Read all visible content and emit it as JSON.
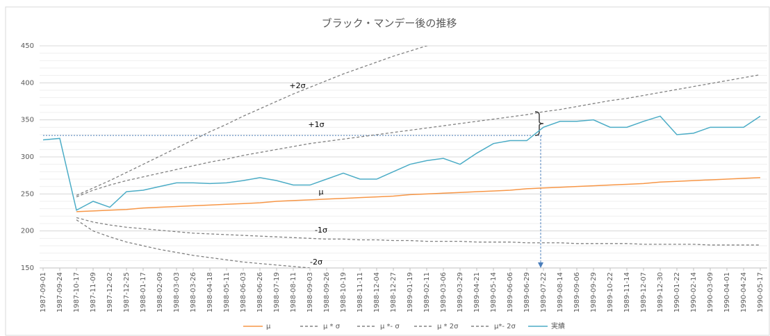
{
  "chart_data": {
    "type": "line",
    "title": "ブラック・マンデー後の推移",
    "categories": [
      "1987-09-01",
      "1987-09-24",
      "1987-10-17",
      "1987-11-09",
      "1987-12-02",
      "1987-12-25",
      "1988-01-17",
      "1988-02-09",
      "1988-03-03",
      "1988-03-26",
      "1988-04-18",
      "1988-05-11",
      "1988-06-03",
      "1988-06-26",
      "1988-07-19",
      "1988-08-11",
      "1988-09-03",
      "1988-09-26",
      "1988-10-19",
      "1988-11-11",
      "1988-12-04",
      "1988-12-27",
      "1989-01-19",
      "1989-02-11",
      "1989-03-06",
      "1989-03-29",
      "1989-04-21",
      "1989-05-14",
      "1989-06-06",
      "1989-06-29",
      "1989-07-22",
      "1989-08-14",
      "1989-09-06",
      "1989-09-29",
      "1989-10-22",
      "1989-11-14",
      "1989-12-07",
      "1989-12-30",
      "1990-01-22",
      "1990-02-14",
      "1990-03-09",
      "1990-04-01",
      "1990-04-24",
      "1990-05-17"
    ],
    "series": [
      {
        "name": "μ",
        "color": "#f79646",
        "dashed": false,
        "values": [
          null,
          null,
          226,
          227,
          228,
          229,
          231,
          232,
          233,
          234,
          235,
          236,
          237,
          238,
          240,
          241,
          242,
          243,
          244,
          245,
          246,
          247,
          249,
          250,
          251,
          252,
          253,
          254,
          255,
          257,
          258,
          259,
          260,
          261,
          262,
          263,
          264,
          266,
          267,
          268,
          269,
          270,
          271,
          272
        ]
      },
      {
        "name": "μ * σ",
        "color": "#808080",
        "dashed": true,
        "values": [
          null,
          null,
          246,
          255,
          262,
          268,
          273,
          278,
          283,
          288,
          293,
          297,
          302,
          306,
          310,
          314,
          318,
          321,
          324,
          327,
          330,
          333,
          336,
          339,
          342,
          345,
          348,
          351,
          354,
          357,
          361,
          364,
          368,
          372,
          376,
          379,
          383,
          387,
          391,
          395,
          399,
          403,
          407,
          411
        ]
      },
      {
        "name": "μ *- σ",
        "color": "#808080",
        "dashed": true,
        "values": [
          null,
          null,
          218,
          212,
          208,
          205,
          203,
          201,
          199,
          197,
          196,
          195,
          194,
          193,
          192,
          191,
          190,
          189,
          189,
          188,
          188,
          187,
          187,
          186,
          186,
          186,
          185,
          185,
          185,
          184,
          184,
          184,
          183,
          183,
          183,
          183,
          182,
          182,
          182,
          182,
          181,
          181,
          181,
          181
        ]
      },
      {
        "name": "μ * 2σ",
        "color": "#808080",
        "dashed": true,
        "values": [
          null,
          null,
          248,
          258,
          268,
          279,
          290,
          301,
          312,
          323,
          334,
          344,
          355,
          365,
          375,
          385,
          394,
          403,
          412,
          420,
          428,
          436,
          443,
          450,
          457,
          464,
          null,
          null,
          null,
          null,
          null,
          null,
          null,
          null,
          null,
          null,
          null,
          null,
          null,
          null,
          null,
          null,
          null,
          null
        ]
      },
      {
        "name": "μ*- 2σ",
        "color": "#808080",
        "dashed": true,
        "values": [
          null,
          null,
          215,
          200,
          192,
          185,
          180,
          175,
          171,
          167,
          164,
          161,
          158,
          156,
          154,
          152,
          150,
          null,
          null,
          null,
          null,
          null,
          null,
          null,
          null,
          null,
          null,
          null,
          null,
          null,
          null,
          null,
          null,
          null,
          null,
          null,
          null,
          null,
          null,
          null,
          null,
          null,
          null,
          null
        ]
      },
      {
        "name": "実績",
        "color": "#4bacc6",
        "dashed": false,
        "values": [
          323,
          325,
          228,
          240,
          232,
          253,
          255,
          260,
          265,
          265,
          264,
          265,
          268,
          272,
          268,
          262,
          262,
          270,
          278,
          270,
          270,
          280,
          290,
          295,
          298,
          290,
          305,
          318,
          322,
          322,
          340,
          348,
          348,
          350,
          340,
          340,
          348,
          355,
          330,
          332,
          340,
          340,
          340,
          355
        ]
      }
    ],
    "annotations": [
      "+2σ",
      "+1σ",
      "μ",
      "-1σ",
      "-2σ"
    ],
    "reference_line": 329,
    "ylim": [
      150,
      450
    ],
    "yticks": [
      150,
      200,
      250,
      300,
      350,
      400,
      450
    ],
    "y_minor_step": 10,
    "grid": true,
    "legend": "bottom"
  }
}
